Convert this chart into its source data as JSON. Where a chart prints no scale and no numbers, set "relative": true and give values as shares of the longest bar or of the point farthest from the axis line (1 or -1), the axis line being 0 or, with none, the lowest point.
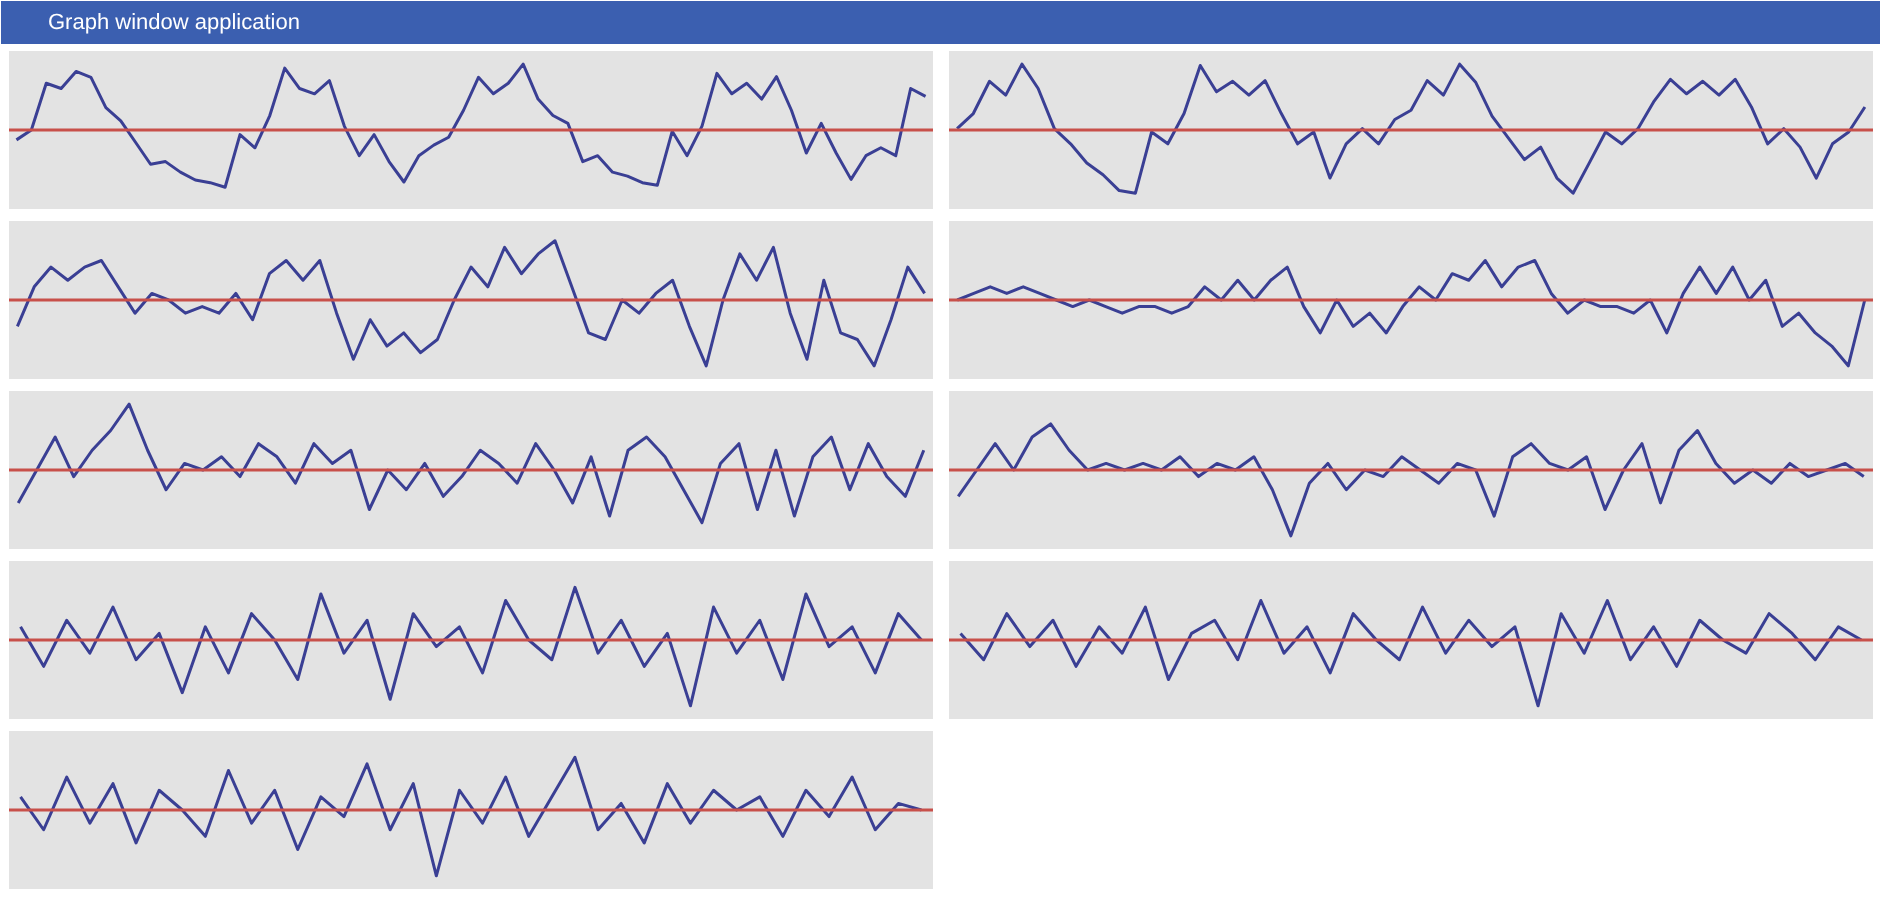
{
  "chart_data": [
    {
      "type": "other",
      "title": "Graph window application"
    },
    {
      "type": "line",
      "relative": true,
      "categories": [
        null,
        null,
        null,
        null,
        null,
        null,
        null,
        null,
        null,
        null,
        null,
        null,
        null,
        null,
        null,
        null,
        null,
        null,
        null,
        null,
        null,
        null,
        null,
        null,
        null,
        null,
        null,
        null,
        null,
        null,
        null,
        null,
        null,
        null,
        null,
        null,
        null,
        null,
        null,
        null,
        null,
        null,
        null,
        null,
        null,
        null,
        null,
        null,
        null,
        null,
        null,
        null,
        null,
        null,
        null,
        null,
        null,
        null,
        null,
        null,
        null,
        null
      ],
      "ref_lines": [
        {
          "axis": "y",
          "value": 0,
          "color": "#c8504a"
        }
      ],
      "series": [
        {
          "color": "#3a3f94",
          "values": [
            -0.15,
            0,
            0.71,
            0.63,
            0.89,
            0.8,
            0.34,
            0.14,
            -0.19,
            -0.52,
            -0.48,
            -0.64,
            -0.76,
            -0.8,
            -0.87,
            -0.07,
            -0.27,
            0.22,
            0.94,
            0.63,
            0.55,
            0.75,
            0.06,
            -0.39,
            -0.07,
            -0.48,
            -0.79,
            -0.39,
            -0.23,
            -0.11,
            0.3,
            0.8,
            0.55,
            0.71,
            1.0,
            0.47,
            0.22,
            0.1,
            -0.48,
            -0.39,
            -0.64,
            -0.7,
            -0.8,
            -0.84,
            -0.02,
            -0.39,
            0.06,
            0.86,
            0.55,
            0.71,
            0.47,
            0.81,
            0.3,
            -0.35,
            0.1,
            -0.35,
            -0.75,
            -0.39,
            -0.27,
            -0.39,
            0.63,
            0.51
          ]
        }
      ]
    },
    {
      "type": "line",
      "relative": true,
      "categories": [
        null,
        null,
        null,
        null,
        null,
        null,
        null,
        null,
        null,
        null,
        null,
        null,
        null,
        null,
        null,
        null,
        null,
        null,
        null,
        null,
        null,
        null,
        null,
        null,
        null,
        null,
        null,
        null,
        null,
        null,
        null,
        null,
        null,
        null,
        null,
        null,
        null,
        null,
        null,
        null,
        null,
        null,
        null,
        null,
        null,
        null,
        null,
        null,
        null,
        null,
        null,
        null,
        null,
        null,
        null,
        null,
        null
      ],
      "ref_lines": [
        {
          "axis": "y",
          "value": 0,
          "color": "#c8504a"
        }
      ],
      "series": [
        {
          "color": "#3a3f94",
          "values": [
            0.02,
            0.25,
            0.74,
            0.53,
            1.0,
            0.63,
            0.02,
            -0.21,
            -0.5,
            -0.68,
            -0.92,
            -0.96,
            -0.03,
            -0.21,
            0.25,
            0.98,
            0.58,
            0.74,
            0.53,
            0.75,
            0.25,
            -0.21,
            -0.03,
            -0.73,
            -0.21,
            0.02,
            -0.21,
            0.16,
            0.3,
            0.75,
            0.53,
            1.0,
            0.72,
            0.21,
            -0.12,
            -0.45,
            -0.26,
            -0.73,
            -0.96,
            -0.5,
            -0.03,
            -0.21,
            0.02,
            0.44,
            0.77,
            0.55,
            0.74,
            0.53,
            0.77,
            0.35,
            -0.21,
            0.02,
            -0.26,
            -0.73,
            -0.21,
            -0.03,
            0.35
          ]
        }
      ]
    },
    {
      "type": "line",
      "relative": true,
      "categories": [
        null,
        null,
        null,
        null,
        null,
        null,
        null,
        null,
        null,
        null,
        null,
        null,
        null,
        null,
        null,
        null,
        null,
        null,
        null,
        null,
        null,
        null,
        null,
        null,
        null,
        null,
        null,
        null,
        null,
        null,
        null,
        null,
        null,
        null,
        null,
        null,
        null,
        null,
        null,
        null,
        null,
        null,
        null,
        null,
        null,
        null,
        null,
        null,
        null,
        null,
        null,
        null,
        null,
        null,
        null
      ],
      "ref_lines": [
        {
          "axis": "y",
          "value": 0,
          "color": "#c8504a"
        }
      ],
      "series": [
        {
          "color": "#3a3f94",
          "values": [
            -0.4,
            0.2,
            0.5,
            0.3,
            0.5,
            0.6,
            0.2,
            -0.2,
            0.1,
            0.0,
            -0.2,
            -0.1,
            -0.2,
            0.1,
            -0.3,
            0.4,
            0.6,
            0.3,
            0.6,
            -0.2,
            -0.9,
            -0.3,
            -0.7,
            -0.5,
            -0.8,
            -0.6,
            0.0,
            0.5,
            0.2,
            0.8,
            0.4,
            0.7,
            0.9,
            0.2,
            -0.5,
            -0.6,
            0.0,
            -0.2,
            0.1,
            0.3,
            -0.4,
            -1.0,
            0.0,
            0.7,
            0.3,
            0.8,
            -0.2,
            -0.9,
            0.3,
            -0.5,
            -0.6,
            -1.0,
            -0.3,
            0.5,
            0.1
          ]
        }
      ]
    },
    {
      "type": "line",
      "relative": true,
      "categories": [
        null,
        null,
        null,
        null,
        null,
        null,
        null,
        null,
        null,
        null,
        null,
        null,
        null,
        null,
        null,
        null,
        null,
        null,
        null,
        null,
        null,
        null,
        null,
        null,
        null,
        null,
        null,
        null,
        null,
        null,
        null,
        null,
        null,
        null,
        null,
        null,
        null,
        null,
        null,
        null,
        null,
        null,
        null,
        null,
        null,
        null,
        null,
        null,
        null,
        null,
        null,
        null,
        null,
        null,
        null,
        null
      ],
      "ref_lines": [
        {
          "axis": "y",
          "value": 0,
          "color": "#c8504a"
        }
      ],
      "series": [
        {
          "color": "#3a3f94",
          "values": [
            0.0,
            0.1,
            0.2,
            0.1,
            0.2,
            0.1,
            0.0,
            -0.1,
            0.0,
            -0.1,
            -0.2,
            -0.1,
            -0.1,
            -0.2,
            -0.1,
            0.2,
            0.0,
            0.3,
            0.0,
            0.3,
            0.5,
            -0.1,
            -0.5,
            0.0,
            -0.4,
            -0.2,
            -0.5,
            -0.1,
            0.2,
            0.0,
            0.4,
            0.3,
            0.6,
            0.2,
            0.5,
            0.6,
            0.1,
            -0.2,
            0.0,
            -0.1,
            -0.1,
            -0.2,
            0.0,
            -0.5,
            0.1,
            0.5,
            0.1,
            0.5,
            0.0,
            0.3,
            -0.4,
            -0.2,
            -0.5,
            -0.7,
            -1.0,
            0.0
          ]
        }
      ]
    },
    {
      "type": "line",
      "relative": true,
      "categories": [
        null,
        null,
        null,
        null,
        null,
        null,
        null,
        null,
        null,
        null,
        null,
        null,
        null,
        null,
        null,
        null,
        null,
        null,
        null,
        null,
        null,
        null,
        null,
        null,
        null,
        null,
        null,
        null,
        null,
        null,
        null,
        null,
        null,
        null,
        null,
        null,
        null,
        null,
        null,
        null,
        null,
        null,
        null,
        null,
        null,
        null,
        null,
        null,
        null,
        null
      ],
      "ref_lines": [
        {
          "axis": "y",
          "value": 0,
          "color": "#c8504a"
        }
      ],
      "series": [
        {
          "color": "#3a3f94",
          "values": [
            -0.5,
            0.0,
            0.5,
            -0.1,
            0.3,
            0.6,
            1.0,
            0.3,
            -0.3,
            0.1,
            0.0,
            0.2,
            -0.1,
            0.4,
            0.2,
            -0.2,
            0.4,
            0.1,
            0.3,
            -0.6,
            0.0,
            -0.3,
            0.1,
            -0.4,
            -0.1,
            0.3,
            0.1,
            -0.2,
            0.4,
            0.0,
            -0.5,
            0.2,
            -0.7,
            0.3,
            0.5,
            0.2,
            -0.3,
            -0.8,
            0.1,
            0.4,
            -0.6,
            0.3,
            -0.7,
            0.2,
            0.5,
            -0.3,
            0.4,
            -0.1,
            -0.4,
            0.3
          ]
        }
      ]
    },
    {
      "type": "line",
      "relative": true,
      "categories": [
        null,
        null,
        null,
        null,
        null,
        null,
        null,
        null,
        null,
        null,
        null,
        null,
        null,
        null,
        null,
        null,
        null,
        null,
        null,
        null,
        null,
        null,
        null,
        null,
        null,
        null,
        null,
        null,
        null,
        null,
        null,
        null,
        null,
        null,
        null,
        null,
        null,
        null,
        null,
        null,
        null,
        null,
        null,
        null,
        null,
        null,
        null,
        null,
        null,
        null
      ],
      "ref_lines": [
        {
          "axis": "y",
          "value": 0,
          "color": "#c8504a"
        }
      ],
      "series": [
        {
          "color": "#3a3f94",
          "values": [
            -0.4,
            0.0,
            0.4,
            0.0,
            0.5,
            0.7,
            0.3,
            0.0,
            0.1,
            0.0,
            0.1,
            0.0,
            0.2,
            -0.1,
            0.1,
            0.0,
            0.2,
            -0.3,
            -1.0,
            -0.2,
            0.1,
            -0.3,
            0.0,
            -0.1,
            0.2,
            0.0,
            -0.2,
            0.1,
            0.0,
            -0.7,
            0.2,
            0.4,
            0.1,
            0.0,
            0.2,
            -0.6,
            0.0,
            0.4,
            -0.5,
            0.3,
            0.6,
            0.1,
            -0.2,
            0.0,
            -0.2,
            0.1,
            -0.1,
            0.0,
            0.1,
            -0.1
          ]
        }
      ]
    },
    {
      "type": "line",
      "relative": true,
      "categories": [
        null,
        null,
        null,
        null,
        null,
        null,
        null,
        null,
        null,
        null,
        null,
        null,
        null,
        null,
        null,
        null,
        null,
        null,
        null,
        null,
        null,
        null,
        null,
        null,
        null,
        null,
        null,
        null,
        null,
        null,
        null,
        null,
        null,
        null,
        null,
        null,
        null,
        null,
        null,
        null
      ],
      "ref_lines": [
        {
          "axis": "y",
          "value": 0,
          "color": "#c8504a"
        }
      ],
      "series": [
        {
          "color": "#3a3f94",
          "values": [
            0.2,
            -0.4,
            0.3,
            -0.2,
            0.5,
            -0.3,
            0.1,
            -0.8,
            0.2,
            -0.5,
            0.4,
            0.0,
            -0.6,
            0.7,
            -0.2,
            0.3,
            -0.9,
            0.4,
            -0.1,
            0.2,
            -0.5,
            0.6,
            0.0,
            -0.3,
            0.8,
            -0.2,
            0.3,
            -0.4,
            0.1,
            -1.0,
            0.5,
            -0.2,
            0.3,
            -0.6,
            0.7,
            -0.1,
            0.2,
            -0.5,
            0.4,
            0.0
          ]
        }
      ]
    },
    {
      "type": "line",
      "relative": true,
      "categories": [
        null,
        null,
        null,
        null,
        null,
        null,
        null,
        null,
        null,
        null,
        null,
        null,
        null,
        null,
        null,
        null,
        null,
        null,
        null,
        null,
        null,
        null,
        null,
        null,
        null,
        null,
        null,
        null,
        null,
        null,
        null,
        null,
        null,
        null,
        null,
        null,
        null,
        null,
        null,
        null
      ],
      "ref_lines": [
        {
          "axis": "y",
          "value": 0,
          "color": "#c8504a"
        }
      ],
      "series": [
        {
          "color": "#3a3f94",
          "values": [
            0.1,
            -0.3,
            0.4,
            -0.1,
            0.3,
            -0.4,
            0.2,
            -0.2,
            0.5,
            -0.6,
            0.1,
            0.3,
            -0.3,
            0.6,
            -0.2,
            0.2,
            -0.5,
            0.4,
            0.0,
            -0.3,
            0.5,
            -0.2,
            0.3,
            -0.1,
            0.2,
            -1.0,
            0.4,
            -0.2,
            0.6,
            -0.3,
            0.2,
            -0.4,
            0.3,
            0.0,
            -0.2,
            0.4,
            0.1,
            -0.3,
            0.2,
            0.0
          ]
        }
      ]
    },
    {
      "type": "line",
      "relative": true,
      "categories": [
        null,
        null,
        null,
        null,
        null,
        null,
        null,
        null,
        null,
        null,
        null,
        null,
        null,
        null,
        null,
        null,
        null,
        null,
        null,
        null,
        null,
        null,
        null,
        null,
        null,
        null,
        null,
        null,
        null,
        null,
        null,
        null,
        null,
        null,
        null,
        null,
        null,
        null,
        null,
        null
      ],
      "ref_lines": [
        {
          "axis": "y",
          "value": 0,
          "color": "#c8504a"
        }
      ],
      "series": [
        {
          "color": "#3a3f94",
          "values": [
            0.2,
            -0.3,
            0.5,
            -0.2,
            0.4,
            -0.5,
            0.3,
            0.0,
            -0.4,
            0.6,
            -0.2,
            0.3,
            -0.6,
            0.2,
            -0.1,
            0.7,
            -0.3,
            0.4,
            -1.0,
            0.3,
            -0.2,
            0.5,
            -0.4,
            0.2,
            0.8,
            -0.3,
            0.1,
            -0.5,
            0.4,
            -0.2,
            0.3,
            0.0,
            0.2,
            -0.4,
            0.3,
            -0.1,
            0.5,
            -0.3,
            0.1,
            0.0
          ]
        }
      ]
    }
  ]
}
